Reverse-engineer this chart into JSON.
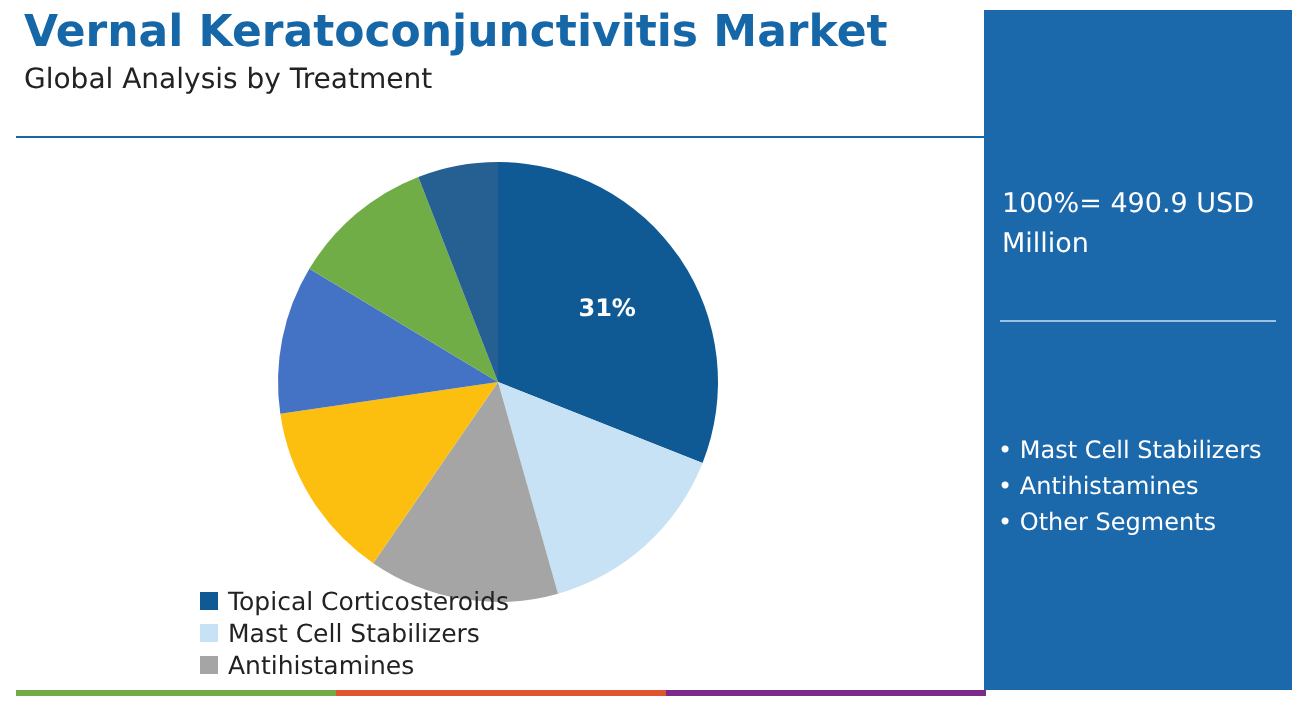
{
  "chart_data": {
    "type": "pie",
    "title": "Vernal Keratoconjunctivitis Market",
    "subtitle": "Global Analysis by Treatment",
    "categories": [
      "Topical Corticosteroids",
      "Mast Cell Stabilizers",
      "Antihistamines",
      null,
      null,
      null,
      null
    ],
    "values": [
      31,
      14.6,
      14,
      13.1,
      10.9,
      10.5,
      5.9
    ],
    "colors": [
      "#0f5a94",
      "#c6e2f4",
      "#a5a5a5",
      "#fdbf0f",
      "#4472c4",
      "#70ad47",
      "#265f91"
    ],
    "value_labels": [
      "31%",
      null,
      null,
      null,
      null,
      null,
      null
    ],
    "legend": "bottom left",
    "annotations": [
      "100%= 490.9 USD Million",
      "• Mast Cell Stabilizers",
      "• Antihistamines",
      "• Other Segments"
    ]
  }
}
